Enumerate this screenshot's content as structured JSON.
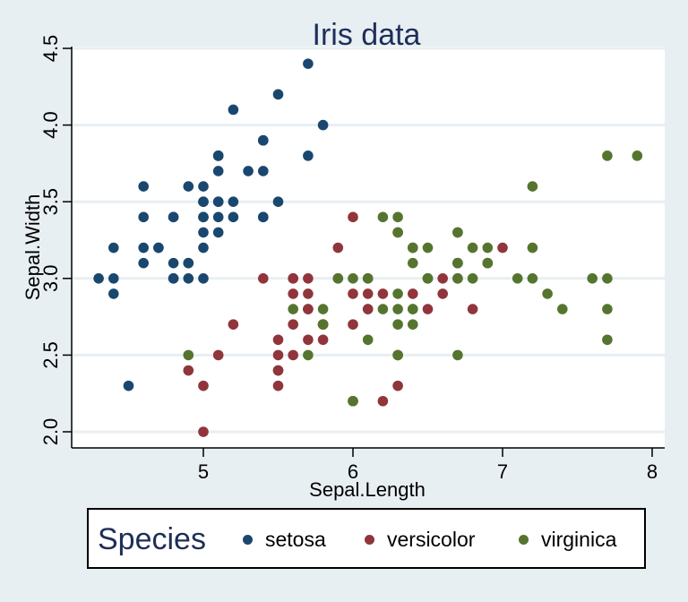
{
  "chart_data": {
    "type": "scatter",
    "title": "Iris data",
    "xlabel": "Sepal.Length",
    "ylabel": "Sepal.Width",
    "xlim": [
      4.3,
      8.0
    ],
    "ylim": [
      2.0,
      4.5
    ],
    "xticks": [
      5,
      6,
      7,
      8
    ],
    "xtick_labels": [
      "5",
      "6",
      "7",
      "8"
    ],
    "yticks": [
      2.0,
      2.5,
      3.0,
      3.5,
      4.0,
      4.5
    ],
    "ytick_labels": [
      "2.0",
      "2.5",
      "3.0",
      "3.5",
      "4.0",
      "4.5"
    ],
    "grid": true,
    "legend": {
      "title": "Species",
      "placement": "bottom"
    },
    "series": [
      {
        "name": "setosa",
        "color": "#1a476f",
        "points": [
          [
            5.1,
            3.5
          ],
          [
            4.9,
            3.0
          ],
          [
            4.7,
            3.2
          ],
          [
            4.6,
            3.1
          ],
          [
            5.0,
            3.6
          ],
          [
            5.4,
            3.9
          ],
          [
            4.6,
            3.4
          ],
          [
            5.0,
            3.4
          ],
          [
            4.4,
            2.9
          ],
          [
            4.9,
            3.1
          ],
          [
            5.4,
            3.7
          ],
          [
            4.8,
            3.4
          ],
          [
            4.8,
            3.0
          ],
          [
            4.3,
            3.0
          ],
          [
            5.8,
            4.0
          ],
          [
            5.7,
            4.4
          ],
          [
            5.4,
            3.9
          ],
          [
            5.1,
            3.5
          ],
          [
            5.7,
            3.8
          ],
          [
            5.1,
            3.8
          ],
          [
            5.4,
            3.4
          ],
          [
            5.1,
            3.7
          ],
          [
            4.6,
            3.6
          ],
          [
            5.1,
            3.3
          ],
          [
            4.8,
            3.4
          ],
          [
            5.0,
            3.0
          ],
          [
            5.0,
            3.4
          ],
          [
            5.2,
            3.5
          ],
          [
            5.2,
            3.4
          ],
          [
            4.7,
            3.2
          ],
          [
            4.8,
            3.1
          ],
          [
            5.4,
            3.4
          ],
          [
            5.2,
            4.1
          ],
          [
            5.5,
            4.2
          ],
          [
            4.9,
            3.1
          ],
          [
            5.0,
            3.2
          ],
          [
            5.5,
            3.5
          ],
          [
            4.9,
            3.6
          ],
          [
            4.4,
            3.0
          ],
          [
            5.1,
            3.4
          ],
          [
            5.0,
            3.5
          ],
          [
            4.5,
            2.3
          ],
          [
            4.4,
            3.2
          ],
          [
            5.0,
            3.5
          ],
          [
            5.1,
            3.8
          ],
          [
            4.8,
            3.0
          ],
          [
            5.1,
            3.8
          ],
          [
            4.6,
            3.2
          ],
          [
            5.3,
            3.7
          ],
          [
            5.0,
            3.3
          ]
        ]
      },
      {
        "name": "versicolor",
        "color": "#90353b",
        "points": [
          [
            7.0,
            3.2
          ],
          [
            6.4,
            3.2
          ],
          [
            6.9,
            3.1
          ],
          [
            5.5,
            2.3
          ],
          [
            6.5,
            2.8
          ],
          [
            5.7,
            2.8
          ],
          [
            6.3,
            3.3
          ],
          [
            4.9,
            2.4
          ],
          [
            6.6,
            2.9
          ],
          [
            5.2,
            2.7
          ],
          [
            5.0,
            2.0
          ],
          [
            5.9,
            3.0
          ],
          [
            6.0,
            2.2
          ],
          [
            6.1,
            2.9
          ],
          [
            5.6,
            2.9
          ],
          [
            6.7,
            3.1
          ],
          [
            5.6,
            3.0
          ],
          [
            5.8,
            2.7
          ],
          [
            6.2,
            2.2
          ],
          [
            5.6,
            2.5
          ],
          [
            5.9,
            3.2
          ],
          [
            6.1,
            2.8
          ],
          [
            6.3,
            2.5
          ],
          [
            6.1,
            2.8
          ],
          [
            6.4,
            2.9
          ],
          [
            6.6,
            3.0
          ],
          [
            6.8,
            2.8
          ],
          [
            6.7,
            3.0
          ],
          [
            6.0,
            2.9
          ],
          [
            5.7,
            2.6
          ],
          [
            5.5,
            2.4
          ],
          [
            5.5,
            2.4
          ],
          [
            5.8,
            2.7
          ],
          [
            6.0,
            2.7
          ],
          [
            5.4,
            3.0
          ],
          [
            6.0,
            3.4
          ],
          [
            6.7,
            3.1
          ],
          [
            6.3,
            2.3
          ],
          [
            5.6,
            3.0
          ],
          [
            5.5,
            2.5
          ],
          [
            5.5,
            2.6
          ],
          [
            6.1,
            3.0
          ],
          [
            5.8,
            2.6
          ],
          [
            5.0,
            2.3
          ],
          [
            5.6,
            2.7
          ],
          [
            5.7,
            3.0
          ],
          [
            5.7,
            2.9
          ],
          [
            6.2,
            2.9
          ],
          [
            5.1,
            2.5
          ],
          [
            5.7,
            2.8
          ]
        ]
      },
      {
        "name": "virginica",
        "color": "#55752f",
        "points": [
          [
            6.3,
            3.3
          ],
          [
            5.8,
            2.7
          ],
          [
            7.1,
            3.0
          ],
          [
            6.3,
            2.9
          ],
          [
            6.5,
            3.0
          ],
          [
            7.6,
            3.0
          ],
          [
            4.9,
            2.5
          ],
          [
            7.3,
            2.9
          ],
          [
            6.7,
            2.5
          ],
          [
            7.2,
            3.6
          ],
          [
            6.5,
            3.2
          ],
          [
            6.4,
            2.7
          ],
          [
            6.8,
            3.0
          ],
          [
            5.7,
            2.5
          ],
          [
            5.8,
            2.8
          ],
          [
            6.4,
            3.2
          ],
          [
            6.5,
            3.0
          ],
          [
            7.7,
            3.8
          ],
          [
            7.7,
            2.6
          ],
          [
            6.0,
            2.2
          ],
          [
            6.9,
            3.2
          ],
          [
            5.6,
            2.8
          ],
          [
            7.7,
            2.8
          ],
          [
            6.3,
            2.7
          ],
          [
            6.7,
            3.3
          ],
          [
            7.2,
            3.2
          ],
          [
            6.2,
            2.8
          ],
          [
            6.1,
            3.0
          ],
          [
            6.4,
            2.8
          ],
          [
            7.2,
            3.0
          ],
          [
            7.4,
            2.8
          ],
          [
            7.9,
            3.8
          ],
          [
            6.4,
            2.8
          ],
          [
            6.3,
            2.8
          ],
          [
            6.1,
            2.6
          ],
          [
            7.7,
            3.0
          ],
          [
            6.3,
            3.4
          ],
          [
            6.4,
            3.1
          ],
          [
            6.0,
            3.0
          ],
          [
            6.9,
            3.1
          ],
          [
            6.7,
            3.1
          ],
          [
            6.9,
            3.1
          ],
          [
            5.8,
            2.7
          ],
          [
            6.8,
            3.2
          ],
          [
            6.7,
            3.3
          ],
          [
            6.7,
            3.0
          ],
          [
            6.3,
            2.5
          ],
          [
            6.5,
            3.0
          ],
          [
            6.2,
            3.4
          ],
          [
            5.9,
            3.0
          ]
        ]
      }
    ]
  }
}
